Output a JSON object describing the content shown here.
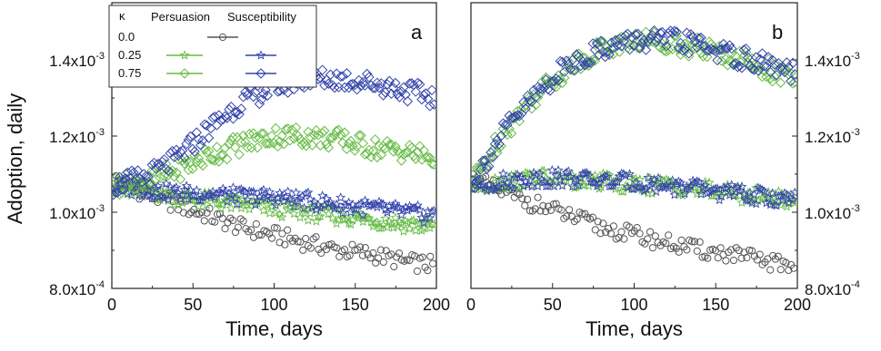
{
  "figure": {
    "ylabel": "Adoption, daily",
    "xlabel": "Time, days"
  },
  "legend": {
    "header_kappa": "κ",
    "header_persuasion": "Persuasion",
    "header_susceptibility": "Susceptibility",
    "rows": [
      {
        "kappa": "0.0",
        "persuasion": false,
        "susceptibility": true
      },
      {
        "kappa": "0.25",
        "persuasion": true,
        "susceptibility": true
      },
      {
        "kappa": "0.75",
        "persuasion": true,
        "susceptibility": true
      }
    ]
  },
  "colors": {
    "baseline": "#555555",
    "persuasion": "#66bb44",
    "susceptibility": "#3344aa"
  },
  "chart_data": [
    {
      "type": "scatter",
      "panel_label": "a",
      "xlabel": "Time, days",
      "ylabel": "Adoption, daily",
      "xlim": [
        0,
        200
      ],
      "ylim": [
        0.0008,
        0.00155
      ],
      "x_ticks": [
        0,
        50,
        100,
        150,
        200
      ],
      "y_tick_values": [
        0.0008,
        0.001,
        0.0012,
        0.0014
      ],
      "y_tick_labels": [
        {
          "base": "8.0x10",
          "exp": "-4"
        },
        {
          "base": "1.0x10",
          "exp": "-3"
        },
        {
          "base": "1.2x10",
          "exp": "-3"
        },
        {
          "base": "1.4x10",
          "exp": "-3"
        }
      ],
      "y_axis_side": "left",
      "series": [
        {
          "kappa": 0.0,
          "mechanism": "baseline",
          "marker": "circle",
          "color": "#555555",
          "x": [
            0,
            20,
            40,
            60,
            80,
            100,
            120,
            140,
            160,
            180,
            200
          ],
          "y": [
            0.00109,
            0.00105,
            0.00102,
            0.00099,
            0.00096,
            0.00094,
            0.00092,
            0.0009,
            0.00089,
            0.00087,
            0.00086
          ]
        },
        {
          "kappa": 0.25,
          "mechanism": "persuasion",
          "marker": "star",
          "color": "#66bb44",
          "x": [
            0,
            20,
            40,
            60,
            80,
            100,
            120,
            140,
            160,
            180,
            200
          ],
          "y": [
            0.00107,
            0.00106,
            0.00104,
            0.00103,
            0.00102,
            0.00101,
            0.001,
            0.00099,
            0.00098,
            0.00097,
            0.00096
          ]
        },
        {
          "kappa": 0.25,
          "mechanism": "susceptibility",
          "marker": "star",
          "color": "#3344aa",
          "x": [
            0,
            20,
            40,
            60,
            80,
            100,
            120,
            140,
            160,
            180,
            200
          ],
          "y": [
            0.00107,
            0.00106,
            0.00105,
            0.00105,
            0.00104,
            0.00104,
            0.00103,
            0.00102,
            0.00101,
            0.001,
            0.00099
          ]
        },
        {
          "kappa": 0.75,
          "mechanism": "persuasion",
          "marker": "diamond",
          "color": "#66bb44",
          "x": [
            0,
            20,
            40,
            60,
            80,
            100,
            120,
            140,
            160,
            180,
            200
          ],
          "y": [
            0.00107,
            0.00108,
            0.00111,
            0.00115,
            0.00118,
            0.0012,
            0.0012,
            0.00119,
            0.00117,
            0.00116,
            0.00114
          ]
        },
        {
          "kappa": 0.75,
          "mechanism": "susceptibility",
          "marker": "diamond",
          "color": "#3344aa",
          "x": [
            0,
            20,
            40,
            60,
            80,
            100,
            120,
            140,
            160,
            180,
            200
          ],
          "y": [
            0.00107,
            0.00109,
            0.00114,
            0.00122,
            0.00129,
            0.00133,
            0.00135,
            0.00135,
            0.00134,
            0.00132,
            0.0013
          ]
        }
      ]
    },
    {
      "type": "scatter",
      "panel_label": "b",
      "xlabel": "Time, days",
      "ylabel": "",
      "xlim": [
        0,
        200
      ],
      "ylim": [
        0.0008,
        0.00155
      ],
      "x_ticks": [
        0,
        50,
        100,
        150,
        200
      ],
      "y_tick_values": [
        0.0008,
        0.001,
        0.0012,
        0.0014
      ],
      "y_tick_labels": [
        {
          "base": "8.0x10",
          "exp": "-4"
        },
        {
          "base": "1.0x10",
          "exp": "-3"
        },
        {
          "base": "1.2x10",
          "exp": "-3"
        },
        {
          "base": "1.4x10",
          "exp": "-3"
        }
      ],
      "y_axis_side": "right",
      "series": [
        {
          "kappa": 0.0,
          "mechanism": "baseline",
          "marker": "circle",
          "color": "#555555",
          "x": [
            0,
            20,
            40,
            60,
            80,
            100,
            120,
            140,
            160,
            180,
            200
          ],
          "y": [
            0.00109,
            0.00105,
            0.00102,
            0.00099,
            0.00096,
            0.00094,
            0.00092,
            0.0009,
            0.00089,
            0.00087,
            0.00086
          ]
        },
        {
          "kappa": 0.25,
          "mechanism": "persuasion",
          "marker": "star",
          "color": "#66bb44",
          "x": [
            0,
            20,
            40,
            60,
            80,
            100,
            120,
            140,
            160,
            180,
            200
          ],
          "y": [
            0.00107,
            0.00108,
            0.00109,
            0.00108,
            0.00108,
            0.00107,
            0.00107,
            0.00106,
            0.00105,
            0.00104,
            0.00103
          ]
        },
        {
          "kappa": 0.25,
          "mechanism": "susceptibility",
          "marker": "star",
          "color": "#3344aa",
          "x": [
            0,
            20,
            40,
            60,
            80,
            100,
            120,
            140,
            160,
            180,
            200
          ],
          "y": [
            0.00107,
            0.00108,
            0.00109,
            0.00109,
            0.00108,
            0.00108,
            0.00107,
            0.00106,
            0.00105,
            0.00104,
            0.00103
          ]
        },
        {
          "kappa": 0.75,
          "mechanism": "persuasion",
          "marker": "diamond",
          "color": "#66bb44",
          "x": [
            0,
            20,
            40,
            60,
            80,
            100,
            120,
            140,
            160,
            180,
            200
          ],
          "y": [
            0.00107,
            0.00121,
            0.00131,
            0.00138,
            0.00143,
            0.00145,
            0.00145,
            0.00143,
            0.00141,
            0.00138,
            0.00134
          ]
        },
        {
          "kappa": 0.75,
          "mechanism": "susceptibility",
          "marker": "diamond",
          "color": "#3344aa",
          "x": [
            0,
            20,
            40,
            60,
            80,
            100,
            120,
            140,
            160,
            180,
            200
          ],
          "y": [
            0.00107,
            0.00121,
            0.00131,
            0.00139,
            0.00143,
            0.00145,
            0.00145,
            0.00144,
            0.00141,
            0.00139,
            0.00136
          ]
        }
      ]
    }
  ]
}
